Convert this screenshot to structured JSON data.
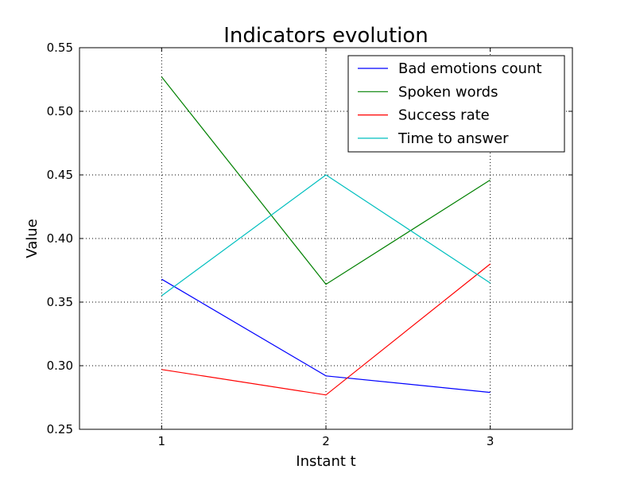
{
  "chart_data": {
    "type": "line",
    "title": "Indicators evolution",
    "xlabel": "Instant t",
    "ylabel": "Value",
    "x": [
      1,
      2,
      3
    ],
    "xlim": [
      0.5,
      3.5
    ],
    "ylim": [
      0.25,
      0.55
    ],
    "xticks": [
      1,
      2,
      3
    ],
    "xtick_labels": [
      "1",
      "2",
      "3"
    ],
    "yticks": [
      0.25,
      0.3,
      0.35,
      0.4,
      0.45,
      0.5,
      0.55
    ],
    "ytick_labels": [
      "0.25",
      "0.30",
      "0.35",
      "0.40",
      "0.45",
      "0.50",
      "0.55"
    ],
    "grid": true,
    "legend_position": "top-right",
    "series": [
      {
        "name": "Bad emotions count",
        "color": "#0000ff",
        "values": [
          0.368,
          0.292,
          0.279
        ]
      },
      {
        "name": "Spoken words",
        "color": "#008000",
        "values": [
          0.527,
          0.364,
          0.446
        ]
      },
      {
        "name": "Success rate",
        "color": "#ff0000",
        "values": [
          0.297,
          0.277,
          0.38
        ]
      },
      {
        "name": "Time to answer",
        "color": "#00bfbf",
        "values": [
          0.355,
          0.45,
          0.365
        ]
      }
    ]
  }
}
